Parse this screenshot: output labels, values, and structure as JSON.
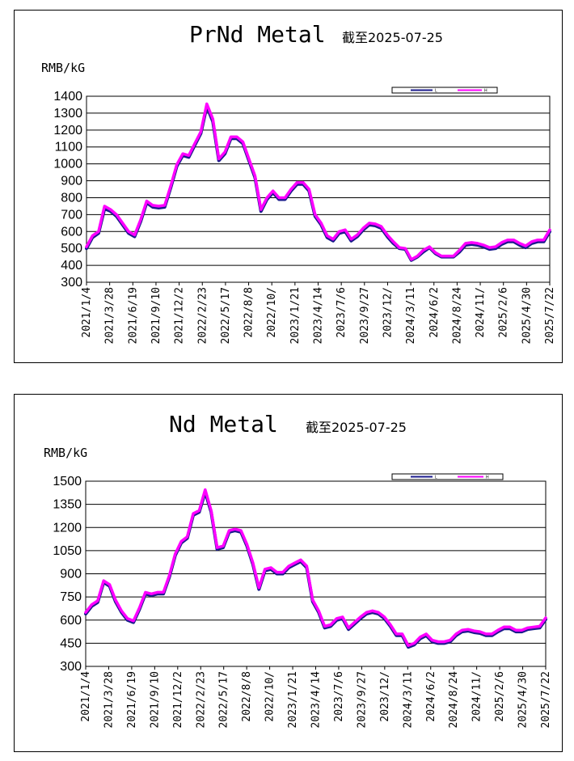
{
  "colors": {
    "low": "#1a1a8c",
    "high": "#ff00ff",
    "grid": "#000000"
  },
  "chart_data": [
    {
      "type": "line",
      "title": "PrNd Metal",
      "subtitle": "截至2025-07-25",
      "ylabel": "RMB/kG",
      "xlabel": "",
      "ylim": [
        300,
        1400
      ],
      "yticks": [
        300,
        400,
        500,
        600,
        700,
        800,
        900,
        1000,
        1100,
        1200,
        1300,
        1400
      ],
      "xtick_labels": [
        "2021/1/4",
        "2021/3/28",
        "2021/6/19",
        "2021/9/10",
        "2021/12/2",
        "2022/2/23",
        "2022/5/17",
        "2022/8/8",
        "2022/10/",
        "2023/1/21",
        "2023/4/14",
        "2023/7/6",
        "2023/9/27",
        "2023/12/",
        "2024/3/11",
        "2024/6/2",
        "2024/8/24",
        "2024/11/",
        "2025/2/6",
        "2025/4/30",
        "2025/7/22"
      ],
      "grid": true,
      "legend_position": "top-right",
      "series": [
        {
          "name": "L",
          "values": [
            500,
            565,
            590,
            735,
            720,
            690,
            640,
            590,
            570,
            660,
            770,
            745,
            740,
            745,
            860,
            985,
            1050,
            1040,
            1110,
            1180,
            1340,
            1250,
            1020,
            1060,
            1150,
            1150,
            1120,
            1020,
            920,
            720,
            790,
            830,
            790,
            790,
            840,
            880,
            880,
            840,
            690,
            640,
            565,
            545,
            590,
            600,
            545,
            570,
            610,
            640,
            635,
            620,
            570,
            530,
            500,
            495,
            430,
            450,
            480,
            505,
            470,
            450,
            450,
            450,
            480,
            520,
            525,
            520,
            510,
            495,
            500,
            525,
            540,
            540,
            520,
            505,
            530,
            540,
            540,
            600
          ]
        },
        {
          "name": "H",
          "values": [
            510,
            575,
            600,
            750,
            730,
            700,
            650,
            600,
            580,
            670,
            780,
            755,
            750,
            755,
            870,
            995,
            1060,
            1050,
            1120,
            1190,
            1355,
            1265,
            1030,
            1070,
            1160,
            1160,
            1130,
            1030,
            930,
            730,
            800,
            840,
            800,
            800,
            850,
            890,
            890,
            850,
            700,
            650,
            575,
            555,
            600,
            610,
            555,
            580,
            620,
            650,
            645,
            630,
            580,
            540,
            505,
            500,
            435,
            455,
            490,
            510,
            475,
            455,
            455,
            455,
            490,
            530,
            535,
            530,
            520,
            505,
            510,
            535,
            550,
            550,
            530,
            515,
            540,
            550,
            550,
            610
          ]
        }
      ]
    },
    {
      "type": "line",
      "title": "Nd Metal",
      "subtitle": "截至2025-07-25",
      "ylabel": "RMB/kG",
      "xlabel": "",
      "ylim": [
        300,
        1500
      ],
      "yticks": [
        300,
        450,
        600,
        750,
        900,
        1050,
        1200,
        1350,
        1500
      ],
      "xtick_labels": [
        "2021/1/4",
        "2021/3/28",
        "2021/6/19",
        "2021/9/10",
        "2021/12/2",
        "2022/2/23",
        "2022/5/17",
        "2022/8/8",
        "2022/10/",
        "2023/1/21",
        "2023/4/14",
        "2023/7/6",
        "2023/9/27",
        "2023/12/",
        "2024/3/11",
        "2024/6/2",
        "2024/8/24",
        "2024/11/",
        "2025/2/6",
        "2025/4/30",
        "2025/7/22"
      ],
      "grid": true,
      "legend_position": "top-right",
      "series": [
        {
          "name": "L",
          "values": [
            640,
            690,
            715,
            845,
            820,
            720,
            650,
            600,
            585,
            670,
            770,
            760,
            770,
            770,
            880,
            1020,
            1100,
            1130,
            1280,
            1300,
            1430,
            1300,
            1060,
            1070,
            1170,
            1180,
            1170,
            1080,
            960,
            800,
            920,
            930,
            900,
            900,
            940,
            960,
            980,
            940,
            720,
            650,
            550,
            560,
            600,
            610,
            540,
            575,
            610,
            640,
            650,
            640,
            610,
            560,
            500,
            500,
            425,
            440,
            480,
            500,
            460,
            450,
            450,
            460,
            500,
            525,
            530,
            520,
            515,
            500,
            500,
            525,
            545,
            545,
            525,
            525,
            540,
            545,
            550,
            605
          ]
        },
        {
          "name": "H",
          "values": [
            650,
            700,
            725,
            855,
            830,
            730,
            660,
            610,
            595,
            680,
            780,
            770,
            780,
            780,
            890,
            1030,
            1110,
            1140,
            1290,
            1310,
            1445,
            1310,
            1070,
            1080,
            1180,
            1190,
            1180,
            1090,
            970,
            810,
            930,
            940,
            910,
            910,
            950,
            970,
            990,
            950,
            730,
            660,
            560,
            570,
            610,
            620,
            550,
            585,
            620,
            650,
            660,
            650,
            620,
            570,
            510,
            510,
            435,
            450,
            490,
            510,
            470,
            460,
            460,
            470,
            510,
            535,
            540,
            530,
            525,
            510,
            510,
            535,
            555,
            555,
            535,
            535,
            550,
            555,
            560,
            615
          ]
        }
      ]
    }
  ]
}
